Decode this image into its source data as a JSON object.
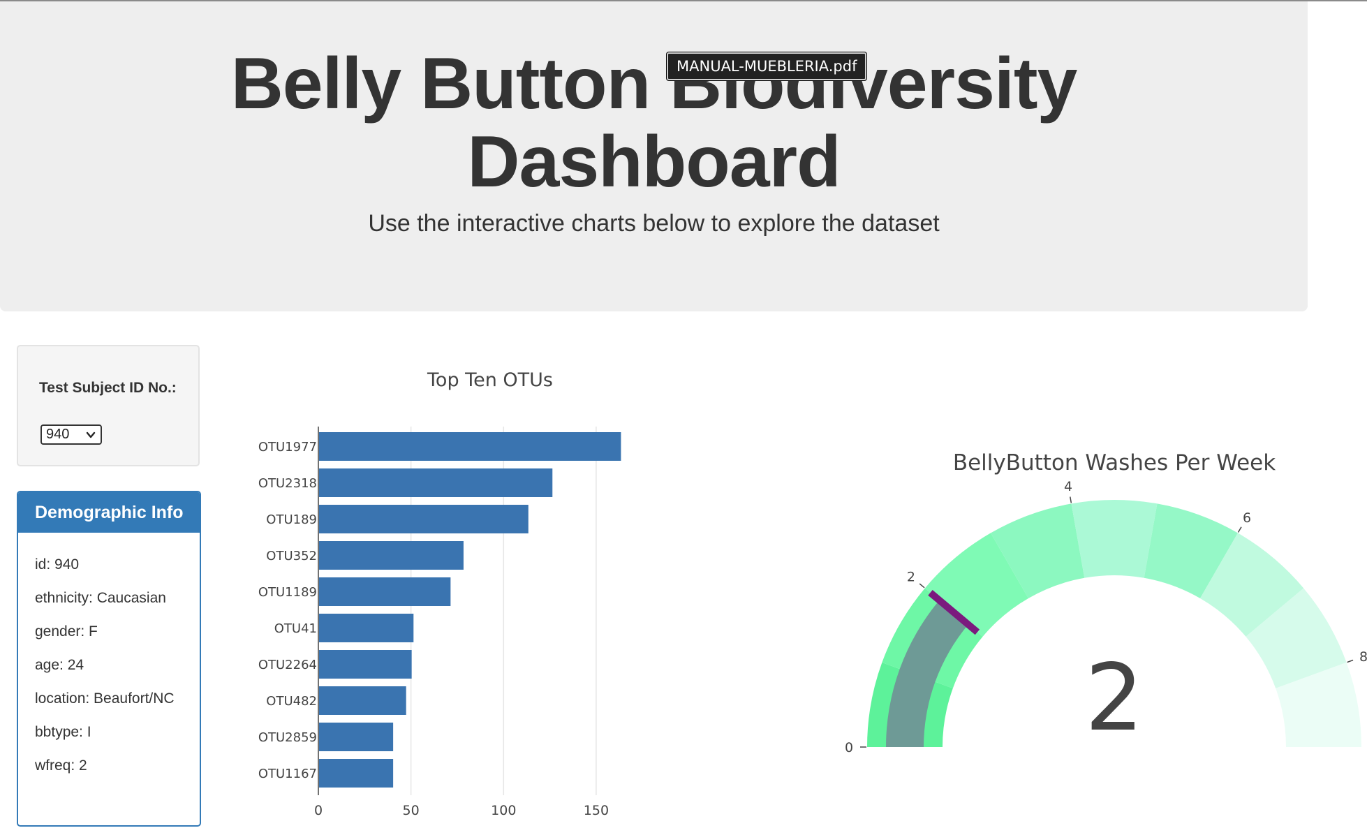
{
  "header": {
    "title_line1": "Belly Button Biodiversity",
    "title_line2": "Dashboard",
    "subtitle": "Use the interactive charts below to explore the dataset",
    "tooltip": "MANUAL-MUEBLERIA.pdf"
  },
  "selector": {
    "label": "Test Subject ID No.:",
    "value": "940",
    "icon": "chevron-down-icon"
  },
  "demographics": {
    "heading": "Demographic Info",
    "items": [
      "id: 940",
      "ethnicity: Caucasian",
      "gender: F",
      "age: 24",
      "location: Beaufort/NC",
      "bbtype: I",
      "wfreq: 2"
    ]
  },
  "colors": {
    "brand": "#337ab7",
    "bar": "#3a74b0",
    "needle": "#7b1a7e",
    "gauge_value": "#6e9a96"
  },
  "chart_data": [
    {
      "type": "bar",
      "orientation": "horizontal",
      "title": "Top Ten OTUs",
      "categories": [
        "OTU1977",
        "OTU2318",
        "OTU189",
        "OTU352",
        "OTU1189",
        "OTU41",
        "OTU2264",
        "OTU482",
        "OTU2859",
        "OTU1167"
      ],
      "values": [
        163,
        126,
        113,
        78,
        71,
        51,
        50,
        47,
        40,
        40
      ],
      "xlim": [
        0,
        170
      ],
      "xticks": [
        0,
        50,
        100,
        150
      ],
      "grid": true
    },
    {
      "type": "gauge",
      "title": "BellyButton Washes Per Week",
      "value": 2,
      "display_value": "2",
      "range": [
        0,
        9
      ],
      "tick_labels": [
        "0",
        "2",
        "4",
        "6",
        "8"
      ],
      "ticks": [
        0,
        2,
        4,
        6,
        8
      ],
      "steps": [
        {
          "range": [
            0,
            1
          ],
          "color": "#5df29a"
        },
        {
          "range": [
            1,
            2
          ],
          "color": "#6ef7a6"
        },
        {
          "range": [
            2,
            3
          ],
          "color": "#7ffab5"
        },
        {
          "range": [
            3,
            4
          ],
          "color": "#8cf8c0"
        },
        {
          "range": [
            4,
            5
          ],
          "color": "#abf9d6"
        },
        {
          "range": [
            5,
            6
          ],
          "color": "#95f8c7"
        },
        {
          "range": [
            6,
            7
          ],
          "color": "#c0fadf"
        },
        {
          "range": [
            7,
            8
          ],
          "color": "#d6fbeb"
        },
        {
          "range": [
            8,
            9
          ],
          "color": "#ebfdf6"
        }
      ],
      "threshold": 2
    }
  ]
}
